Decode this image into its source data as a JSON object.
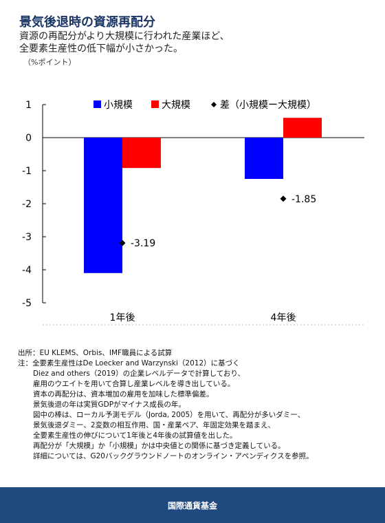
{
  "header": {
    "title": "景気後退時の資源再配分",
    "subtitle_line1": "資源の再配分がより大規模に行われた産業ほど、",
    "subtitle_line2": "全要素生産性の低下幅が小さかった。",
    "unit": "（%ポイント）"
  },
  "chart_data": {
    "type": "bar",
    "categories": [
      "1年後",
      "4年後"
    ],
    "series": [
      {
        "name": "小規模",
        "values": [
          -4.1,
          -1.25
        ],
        "color": "#0000ff"
      },
      {
        "name": "大規模",
        "values": [
          -0.92,
          0.6
        ],
        "color": "#ff0000"
      },
      {
        "name": "差（小規模ー大規模）",
        "values": [
          -3.19,
          -1.85
        ],
        "marker": "diamond",
        "color": "#000000"
      }
    ],
    "data_labels": [
      "-3.19",
      "-1.85"
    ],
    "ylim": [
      -5,
      1
    ],
    "yticks": [
      "1",
      "0",
      "-1",
      "-2",
      "-3",
      "-4",
      "-5"
    ],
    "legend_position": "top"
  },
  "notes": {
    "source": "出所：EU KLEMS、Orbis、IMF職員による試算",
    "lines": [
      "注：全要素生産性はDe Loecker and Warzynski（2012）に基づく",
      "Diez and others（2019）の企業レベルデータで計算しており、",
      "雇用のウエイトを用いて合算し産業レベルを導き出している。",
      "資本の再配分は、資本増加の雇用を加味した標準偏差。",
      "景気後退の年は実質GDPがマイナス成長の年。",
      "図中の棒は、ローカル予測モデル（Jorda, 2005）を用いて、再配分が多いダミー、",
      "景気後退ダミー、2変数の相互作用、国・産業ペア、年固定効果を踏まえ、",
      "全要素生産性の伸びについて1年後と4年後の試算値を出した。",
      "再配分が「大規模」か「小規模」かは中央値との関係に基づき定義している。",
      "詳細については、G20バックグラウンドノートのオンライン・アペンディクスを参照。"
    ]
  },
  "footer": {
    "label": "国際通貨基金"
  }
}
